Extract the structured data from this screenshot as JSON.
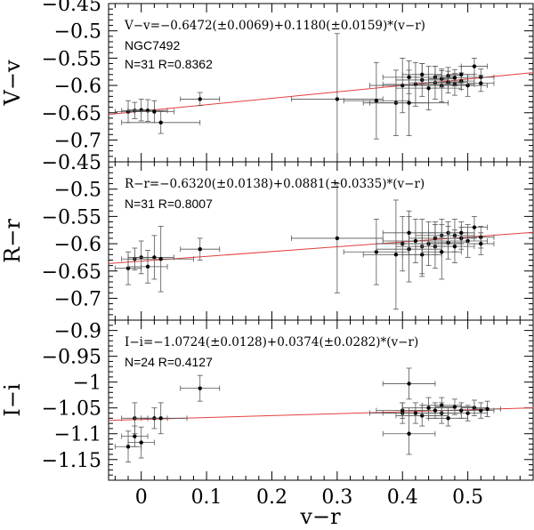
{
  "chart_data": {
    "type": "scatter",
    "xlabel": "v−r",
    "xlim": [
      -0.05,
      0.6
    ],
    "xticks": [
      0,
      0.1,
      0.2,
      0.3,
      0.4,
      0.5
    ],
    "xtick_labels": [
      "0",
      "0.1",
      "0.2",
      "0.3",
      "0.4",
      "0.5"
    ],
    "grid": false,
    "panels": [
      {
        "id": "vv",
        "ylabel": "V−v",
        "ylim": [
          -0.45,
          -0.74
        ],
        "yticks": [
          -0.45,
          -0.5,
          -0.55,
          -0.6,
          -0.65,
          -0.7
        ],
        "ytick_labels": [
          "−0.45",
          "−0.5",
          "−0.55",
          "−0.6",
          "−0.65",
          "−0.7"
        ],
        "fit_label": "V−v=−0.6472(±0.0069)+0.1180(±0.0159)*(v−r)",
        "annotations": [
          "NGC7492",
          "N=31 R=0.8362"
        ],
        "fit": {
          "intercept": -0.6472,
          "slope": 0.118
        },
        "points": [
          {
            "x": -0.02,
            "y": -0.648,
            "xerr": 0.02,
            "yerr": 0.02
          },
          {
            "x": -0.01,
            "y": -0.646,
            "xerr": 0.02,
            "yerr": 0.015
          },
          {
            "x": 0.0,
            "y": -0.645,
            "xerr": 0.02,
            "yerr": 0.02
          },
          {
            "x": 0.01,
            "y": -0.646,
            "xerr": 0.03,
            "yerr": 0.02
          },
          {
            "x": 0.02,
            "y": -0.648,
            "xerr": 0.03,
            "yerr": 0.02
          },
          {
            "x": 0.03,
            "y": -0.668,
            "xerr": 0.06,
            "yerr": 0.02
          },
          {
            "x": 0.09,
            "y": -0.625,
            "xerr": 0.03,
            "yerr": 0.012
          },
          {
            "x": 0.3,
            "y": -0.625,
            "xerr": 0.07,
            "yerr": 0.12
          },
          {
            "x": 0.36,
            "y": -0.628,
            "xerr": 0.05,
            "yerr": 0.07
          },
          {
            "x": 0.39,
            "y": -0.632,
            "xerr": 0.05,
            "yerr": 0.06
          },
          {
            "x": 0.4,
            "y": -0.6,
            "xerr": 0.05,
            "yerr": 0.05
          },
          {
            "x": 0.41,
            "y": -0.632,
            "xerr": 0.06,
            "yerr": 0.06
          },
          {
            "x": 0.41,
            "y": -0.585,
            "xerr": 0.04,
            "yerr": 0.03
          },
          {
            "x": 0.42,
            "y": -0.598,
            "xerr": 0.05,
            "yerr": 0.04
          },
          {
            "x": 0.43,
            "y": -0.59,
            "xerr": 0.04,
            "yerr": 0.03
          },
          {
            "x": 0.43,
            "y": -0.58,
            "xerr": 0.03,
            "yerr": 0.02
          },
          {
            "x": 0.44,
            "y": -0.605,
            "xerr": 0.05,
            "yerr": 0.04
          },
          {
            "x": 0.45,
            "y": -0.595,
            "xerr": 0.04,
            "yerr": 0.03
          },
          {
            "x": 0.45,
            "y": -0.585,
            "xerr": 0.03,
            "yerr": 0.02
          },
          {
            "x": 0.46,
            "y": -0.6,
            "xerr": 0.04,
            "yerr": 0.03
          },
          {
            "x": 0.46,
            "y": -0.588,
            "xerr": 0.02,
            "yerr": 0.015
          },
          {
            "x": 0.47,
            "y": -0.594,
            "xerr": 0.03,
            "yerr": 0.02
          },
          {
            "x": 0.47,
            "y": -0.582,
            "xerr": 0.02,
            "yerr": 0.015
          },
          {
            "x": 0.48,
            "y": -0.598,
            "xerr": 0.03,
            "yerr": 0.02
          },
          {
            "x": 0.48,
            "y": -0.586,
            "xerr": 0.02,
            "yerr": 0.015
          },
          {
            "x": 0.49,
            "y": -0.592,
            "xerr": 0.02,
            "yerr": 0.015
          },
          {
            "x": 0.49,
            "y": -0.58,
            "xerr": 0.02,
            "yerr": 0.015
          },
          {
            "x": 0.5,
            "y": -0.6,
            "xerr": 0.03,
            "yerr": 0.02
          },
          {
            "x": 0.51,
            "y": -0.565,
            "xerr": 0.02,
            "yerr": 0.015
          },
          {
            "x": 0.52,
            "y": -0.585,
            "xerr": 0.02,
            "yerr": 0.015
          },
          {
            "x": 0.52,
            "y": -0.596,
            "xerr": 0.02,
            "yerr": 0.015
          }
        ]
      },
      {
        "id": "rr",
        "ylabel": "R−r",
        "ylim": [
          -0.45,
          -0.74
        ],
        "yticks": [
          -0.45,
          -0.5,
          -0.55,
          -0.6,
          -0.65,
          -0.7
        ],
        "ytick_labels": [
          "−0.45",
          "−0.5",
          "−0.55",
          "−0.6",
          "−0.65",
          "−0.7"
        ],
        "fit_label": "R−r=−0.6320(±0.0138)+0.0881(±0.0335)*(v−r)",
        "annotations": [
          "N=31 R=0.8007"
        ],
        "fit": {
          "intercept": -0.632,
          "slope": 0.0881
        },
        "points": [
          {
            "x": -0.02,
            "y": -0.645,
            "xerr": 0.02,
            "yerr": 0.03
          },
          {
            "x": -0.01,
            "y": -0.628,
            "xerr": 0.02,
            "yerr": 0.02
          },
          {
            "x": 0.0,
            "y": -0.625,
            "xerr": 0.02,
            "yerr": 0.03
          },
          {
            "x": 0.01,
            "y": -0.642,
            "xerr": 0.03,
            "yerr": 0.03
          },
          {
            "x": 0.02,
            "y": -0.625,
            "xerr": 0.03,
            "yerr": 0.04
          },
          {
            "x": 0.03,
            "y": -0.628,
            "xerr": 0.05,
            "yerr": 0.06
          },
          {
            "x": 0.09,
            "y": -0.61,
            "xerr": 0.03,
            "yerr": 0.02
          },
          {
            "x": 0.3,
            "y": -0.59,
            "xerr": 0.07,
            "yerr": 0.1
          },
          {
            "x": 0.36,
            "y": -0.615,
            "xerr": 0.05,
            "yerr": 0.06
          },
          {
            "x": 0.39,
            "y": -0.62,
            "xerr": 0.05,
            "yerr": 0.1
          },
          {
            "x": 0.4,
            "y": -0.6,
            "xerr": 0.04,
            "yerr": 0.05
          },
          {
            "x": 0.41,
            "y": -0.61,
            "xerr": 0.05,
            "yerr": 0.06
          },
          {
            "x": 0.41,
            "y": -0.58,
            "xerr": 0.04,
            "yerr": 0.04
          },
          {
            "x": 0.42,
            "y": -0.595,
            "xerr": 0.05,
            "yerr": 0.04
          },
          {
            "x": 0.43,
            "y": -0.605,
            "xerr": 0.04,
            "yerr": 0.05
          },
          {
            "x": 0.43,
            "y": -0.62,
            "xerr": 0.03,
            "yerr": 0.04
          },
          {
            "x": 0.44,
            "y": -0.6,
            "xerr": 0.05,
            "yerr": 0.04
          },
          {
            "x": 0.45,
            "y": -0.59,
            "xerr": 0.04,
            "yerr": 0.03
          },
          {
            "x": 0.45,
            "y": -0.605,
            "xerr": 0.03,
            "yerr": 0.04
          },
          {
            "x": 0.46,
            "y": -0.585,
            "xerr": 0.04,
            "yerr": 0.03
          },
          {
            "x": 0.46,
            "y": -0.615,
            "xerr": 0.03,
            "yerr": 0.05
          },
          {
            "x": 0.47,
            "y": -0.58,
            "xerr": 0.03,
            "yerr": 0.02
          },
          {
            "x": 0.47,
            "y": -0.598,
            "xerr": 0.03,
            "yerr": 0.03
          },
          {
            "x": 0.48,
            "y": -0.585,
            "xerr": 0.03,
            "yerr": 0.03
          },
          {
            "x": 0.48,
            "y": -0.605,
            "xerr": 0.03,
            "yerr": 0.03
          },
          {
            "x": 0.49,
            "y": -0.59,
            "xerr": 0.02,
            "yerr": 0.02
          },
          {
            "x": 0.49,
            "y": -0.58,
            "xerr": 0.02,
            "yerr": 0.02
          },
          {
            "x": 0.5,
            "y": -0.595,
            "xerr": 0.03,
            "yerr": 0.03
          },
          {
            "x": 0.51,
            "y": -0.57,
            "xerr": 0.02,
            "yerr": 0.02
          },
          {
            "x": 0.52,
            "y": -0.588,
            "xerr": 0.02,
            "yerr": 0.02
          },
          {
            "x": 0.52,
            "y": -0.6,
            "xerr": 0.02,
            "yerr": 0.02
          }
        ]
      },
      {
        "id": "ii",
        "ylabel": "I−i",
        "ylim": [
          -0.88,
          -1.19
        ],
        "yticks": [
          -0.9,
          -0.95,
          -1.0,
          -1.05,
          -1.1,
          -1.15
        ],
        "ytick_labels": [
          "−0.9",
          "−0.95",
          "−1",
          "−1.05",
          "−1.1",
          "−1.15"
        ],
        "fit_label": "I−i=−1.0724(±0.0128)+0.0374(±0.0282)*(v−r)",
        "annotations": [
          "N=24 R=0.4127"
        ],
        "fit": {
          "intercept": -1.0724,
          "slope": 0.0374
        },
        "points": [
          {
            "x": -0.02,
            "y": -1.125,
            "xerr": 0.02,
            "yerr": 0.03
          },
          {
            "x": -0.01,
            "y": -1.07,
            "xerr": 0.02,
            "yerr": 0.03
          },
          {
            "x": -0.01,
            "y": -1.105,
            "xerr": 0.02,
            "yerr": 0.02
          },
          {
            "x": 0.0,
            "y": -1.117,
            "xerr": 0.02,
            "yerr": 0.03
          },
          {
            "x": 0.02,
            "y": -1.07,
            "xerr": 0.02,
            "yerr": 0.02
          },
          {
            "x": 0.03,
            "y": -1.07,
            "xerr": 0.04,
            "yerr": 0.03
          },
          {
            "x": 0.09,
            "y": -1.012,
            "xerr": 0.03,
            "yerr": 0.025
          },
          {
            "x": 0.4,
            "y": -1.06,
            "xerr": 0.05,
            "yerr": 0.02
          },
          {
            "x": 0.4,
            "y": -1.055,
            "xerr": 0.04,
            "yerr": 0.015
          },
          {
            "x": 0.41,
            "y": -1.1,
            "xerr": 0.04,
            "yerr": 0.04
          },
          {
            "x": 0.41,
            "y": -1.003,
            "xerr": 0.04,
            "yerr": 0.03
          },
          {
            "x": 0.42,
            "y": -1.06,
            "xerr": 0.05,
            "yerr": 0.02
          },
          {
            "x": 0.43,
            "y": -1.065,
            "xerr": 0.04,
            "yerr": 0.02
          },
          {
            "x": 0.44,
            "y": -1.05,
            "xerr": 0.04,
            "yerr": 0.02
          },
          {
            "x": 0.45,
            "y": -1.055,
            "xerr": 0.04,
            "yerr": 0.015
          },
          {
            "x": 0.46,
            "y": -1.06,
            "xerr": 0.03,
            "yerr": 0.02
          },
          {
            "x": 0.46,
            "y": -1.045,
            "xerr": 0.03,
            "yerr": 0.015
          },
          {
            "x": 0.47,
            "y": -1.07,
            "xerr": 0.03,
            "yerr": 0.015
          },
          {
            "x": 0.48,
            "y": -1.048,
            "xerr": 0.03,
            "yerr": 0.015
          },
          {
            "x": 0.49,
            "y": -1.055,
            "xerr": 0.02,
            "yerr": 0.015
          },
          {
            "x": 0.5,
            "y": -1.06,
            "xerr": 0.03,
            "yerr": 0.015
          },
          {
            "x": 0.51,
            "y": -1.05,
            "xerr": 0.02,
            "yerr": 0.015
          },
          {
            "x": 0.52,
            "y": -1.055,
            "xerr": 0.02,
            "yerr": 0.015
          },
          {
            "x": 0.53,
            "y": -1.052,
            "xerr": 0.02,
            "yerr": 0.015
          }
        ]
      }
    ],
    "colors": {
      "points": "#000000",
      "errorbars": "#555555",
      "fit_line": "#e34040",
      "axes": "#000000"
    }
  }
}
